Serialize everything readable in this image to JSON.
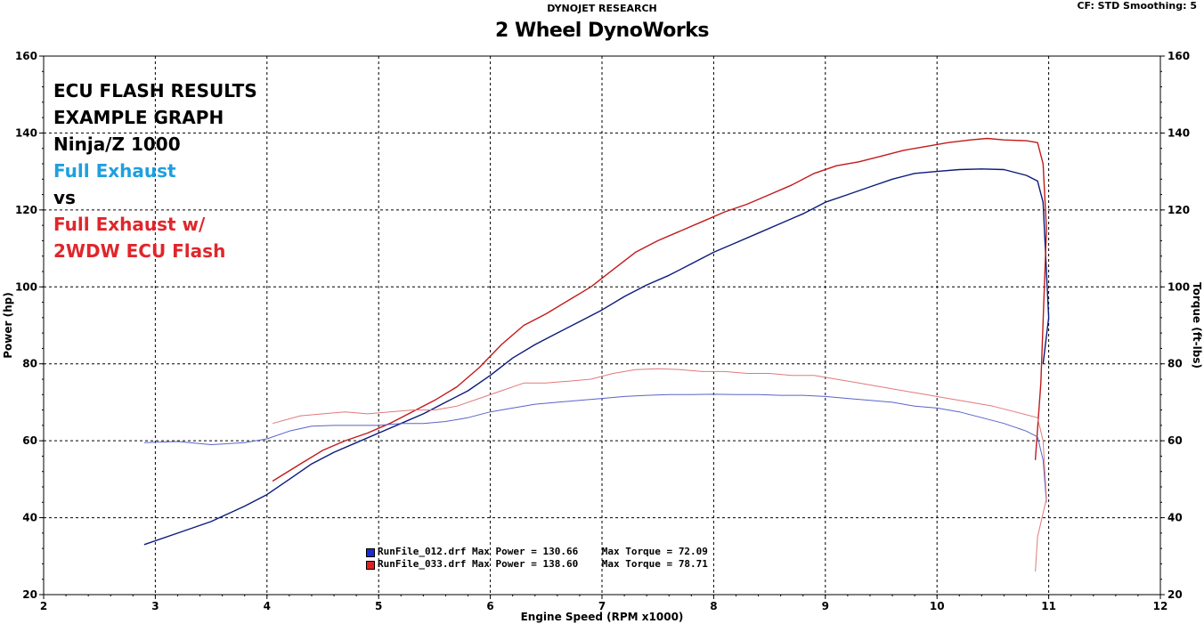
{
  "header": {
    "brand": "DYNOJET RESEARCH",
    "shop": "2 Wheel DynoWorks",
    "cf_info": "CF: STD  Smoothing: 5"
  },
  "notes": [
    {
      "text": "ECU FLASH RESULTS",
      "color": "#000000"
    },
    {
      "text": "EXAMPLE GRAPH",
      "color": "#000000"
    },
    {
      "text": "Ninja/Z 1000",
      "color": "#000000"
    },
    {
      "text": "Full Exhaust",
      "color": "#1e9fe0"
    },
    {
      "text": "vs",
      "color": "#000000"
    },
    {
      "text": "Full Exhaust w/",
      "color": "#e0262b"
    },
    {
      "text": "2WDW ECU Flash",
      "color": "#e0262b"
    }
  ],
  "legend": [
    {
      "file": "RunFile_012.drf",
      "max_power_label": "Max Power",
      "max_power": "130.66",
      "max_torque_label": "Max Torque",
      "max_torque": "72.09",
      "color": "#1a2bd6"
    },
    {
      "file": "RunFile_033.drf",
      "max_power_label": "Max Power",
      "max_power": "138.60",
      "max_torque_label": "Max Torque",
      "max_torque": "78.71",
      "color": "#e02020"
    }
  ],
  "chart_data": {
    "type": "line",
    "xlabel": "Engine Speed (RPM x1000)",
    "ylabel": "Power (hp)",
    "y2label": "Torque (ft-lbs)",
    "xlim": [
      2,
      12
    ],
    "ylim": [
      20,
      160
    ],
    "y2lim": [
      20,
      160
    ],
    "xticks": [
      2,
      3,
      4,
      5,
      6,
      7,
      8,
      9,
      10,
      11,
      12
    ],
    "yticks": [
      20,
      40,
      60,
      80,
      100,
      120,
      140,
      160
    ],
    "grid": true,
    "series": [
      {
        "name": "RunFile_012.drf",
        "quantity": "power",
        "color": "#0b1a7a",
        "points": [
          [
            2.9,
            33
          ],
          [
            3.2,
            36
          ],
          [
            3.5,
            39
          ],
          [
            3.8,
            43
          ],
          [
            4.0,
            46
          ],
          [
            4.2,
            50
          ],
          [
            4.4,
            54
          ],
          [
            4.6,
            57
          ],
          [
            4.8,
            59.5
          ],
          [
            5.0,
            62
          ],
          [
            5.2,
            64.5
          ],
          [
            5.4,
            67
          ],
          [
            5.6,
            70
          ],
          [
            5.8,
            73
          ],
          [
            6.0,
            77
          ],
          [
            6.2,
            81.5
          ],
          [
            6.4,
            85
          ],
          [
            6.6,
            88
          ],
          [
            6.8,
            91
          ],
          [
            7.0,
            94
          ],
          [
            7.2,
            97.5
          ],
          [
            7.4,
            100.5
          ],
          [
            7.6,
            103
          ],
          [
            7.8,
            106
          ],
          [
            8.0,
            109
          ],
          [
            8.2,
            111.5
          ],
          [
            8.4,
            114
          ],
          [
            8.6,
            116.5
          ],
          [
            8.8,
            119
          ],
          [
            9.0,
            122
          ],
          [
            9.2,
            124
          ],
          [
            9.4,
            126
          ],
          [
            9.6,
            128
          ],
          [
            9.8,
            129.5
          ],
          [
            10.0,
            130
          ],
          [
            10.2,
            130.5
          ],
          [
            10.4,
            130.66
          ],
          [
            10.6,
            130.5
          ],
          [
            10.8,
            129
          ],
          [
            10.9,
            127.5
          ],
          [
            10.95,
            122
          ],
          [
            11.0,
            92
          ],
          [
            10.95,
            80
          ]
        ]
      },
      {
        "name": "RunFile_033.drf",
        "quantity": "power",
        "color": "#c21a1a",
        "points": [
          [
            4.05,
            49.5
          ],
          [
            4.3,
            54
          ],
          [
            4.5,
            57.5
          ],
          [
            4.7,
            60
          ],
          [
            4.9,
            62
          ],
          [
            5.1,
            64.5
          ],
          [
            5.3,
            67.5
          ],
          [
            5.5,
            70.5
          ],
          [
            5.7,
            74
          ],
          [
            5.9,
            79
          ],
          [
            6.1,
            85
          ],
          [
            6.3,
            90
          ],
          [
            6.5,
            93
          ],
          [
            6.7,
            96.5
          ],
          [
            6.9,
            100
          ],
          [
            7.1,
            104.5
          ],
          [
            7.3,
            109
          ],
          [
            7.5,
            112
          ],
          [
            7.7,
            114.5
          ],
          [
            7.9,
            117
          ],
          [
            8.1,
            119.5
          ],
          [
            8.3,
            121.5
          ],
          [
            8.5,
            124
          ],
          [
            8.7,
            126.5
          ],
          [
            8.9,
            129.5
          ],
          [
            9.1,
            131.5
          ],
          [
            9.3,
            132.5
          ],
          [
            9.5,
            134
          ],
          [
            9.7,
            135.5
          ],
          [
            9.9,
            136.5
          ],
          [
            10.1,
            137.5
          ],
          [
            10.3,
            138.2
          ],
          [
            10.45,
            138.6
          ],
          [
            10.6,
            138.2
          ],
          [
            10.8,
            138
          ],
          [
            10.9,
            137.5
          ],
          [
            10.95,
            132
          ],
          [
            10.98,
            115
          ],
          [
            10.93,
            75
          ],
          [
            10.88,
            55
          ]
        ]
      },
      {
        "name": "RunFile_012.drf",
        "quantity": "torque",
        "color": "#5a63c9",
        "points": [
          [
            2.9,
            59.5
          ],
          [
            3.2,
            59.8
          ],
          [
            3.5,
            59
          ],
          [
            3.8,
            59.5
          ],
          [
            4.0,
            60.5
          ],
          [
            4.2,
            62.5
          ],
          [
            4.4,
            63.8
          ],
          [
            4.6,
            64
          ],
          [
            4.8,
            64
          ],
          [
            5.0,
            64
          ],
          [
            5.2,
            64.5
          ],
          [
            5.4,
            64.5
          ],
          [
            5.6,
            65
          ],
          [
            5.8,
            66
          ],
          [
            6.0,
            67.5
          ],
          [
            6.2,
            68.5
          ],
          [
            6.4,
            69.5
          ],
          [
            6.6,
            70
          ],
          [
            6.8,
            70.5
          ],
          [
            7.0,
            71
          ],
          [
            7.2,
            71.5
          ],
          [
            7.4,
            71.8
          ],
          [
            7.6,
            72
          ],
          [
            7.8,
            72
          ],
          [
            8.0,
            72.09
          ],
          [
            8.2,
            72
          ],
          [
            8.4,
            72
          ],
          [
            8.6,
            71.8
          ],
          [
            8.8,
            71.8
          ],
          [
            9.0,
            71.5
          ],
          [
            9.2,
            71
          ],
          [
            9.4,
            70.5
          ],
          [
            9.6,
            70
          ],
          [
            9.8,
            69
          ],
          [
            10.0,
            68.5
          ],
          [
            10.2,
            67.5
          ],
          [
            10.4,
            66
          ],
          [
            10.6,
            64.5
          ],
          [
            10.8,
            62.5
          ],
          [
            10.9,
            61
          ],
          [
            10.95,
            55
          ],
          [
            10.98,
            44
          ]
        ]
      },
      {
        "name": "RunFile_033.drf",
        "quantity": "torque",
        "color": "#e07a7a",
        "points": [
          [
            4.05,
            64.5
          ],
          [
            4.3,
            66.5
          ],
          [
            4.5,
            67
          ],
          [
            4.7,
            67.5
          ],
          [
            4.9,
            67
          ],
          [
            5.1,
            67.5
          ],
          [
            5.3,
            68
          ],
          [
            5.5,
            68
          ],
          [
            5.7,
            69
          ],
          [
            5.9,
            71
          ],
          [
            6.1,
            73
          ],
          [
            6.3,
            75
          ],
          [
            6.5,
            75
          ],
          [
            6.7,
            75.5
          ],
          [
            6.9,
            76
          ],
          [
            7.1,
            77.5
          ],
          [
            7.3,
            78.5
          ],
          [
            7.5,
            78.71
          ],
          [
            7.7,
            78.5
          ],
          [
            7.9,
            78
          ],
          [
            8.1,
            78
          ],
          [
            8.3,
            77.5
          ],
          [
            8.5,
            77.5
          ],
          [
            8.7,
            77
          ],
          [
            8.9,
            77
          ],
          [
            9.1,
            76
          ],
          [
            9.3,
            75
          ],
          [
            9.5,
            74
          ],
          [
            9.7,
            73
          ],
          [
            9.9,
            72
          ],
          [
            10.1,
            71
          ],
          [
            10.3,
            70
          ],
          [
            10.5,
            69
          ],
          [
            10.7,
            67.5
          ],
          [
            10.9,
            66
          ],
          [
            10.95,
            60
          ],
          [
            10.98,
            45
          ],
          [
            10.9,
            35
          ],
          [
            10.88,
            26
          ]
        ]
      }
    ]
  }
}
